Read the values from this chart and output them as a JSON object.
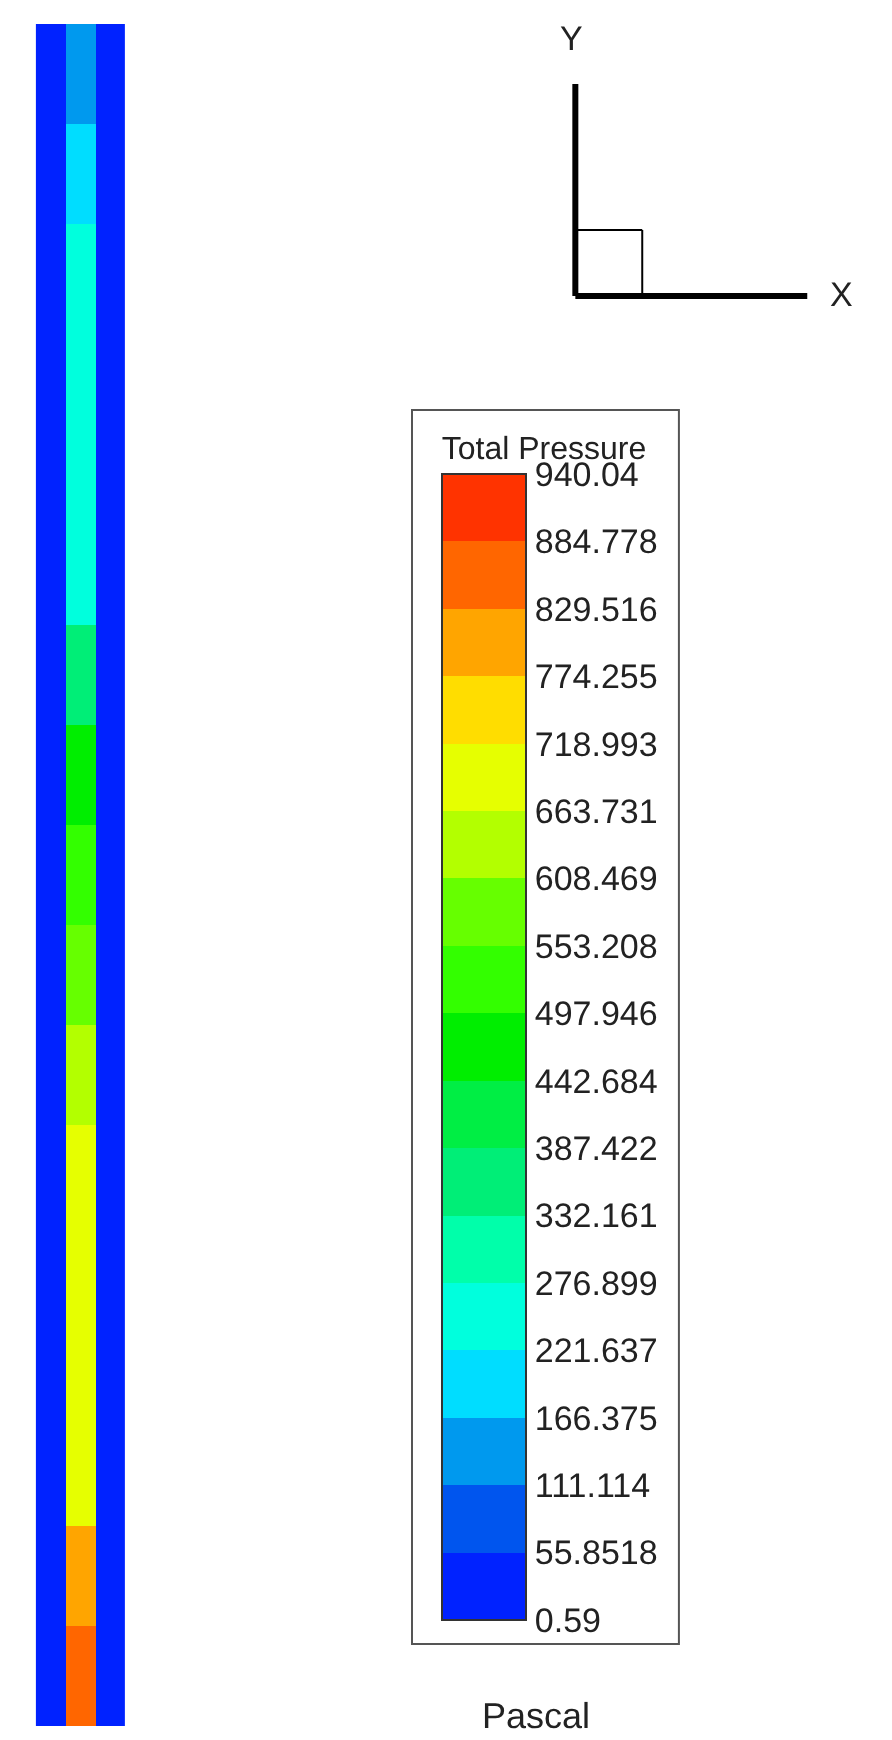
{
  "chart_data": {
    "type": "heatmap",
    "clabel": "Total Pressure",
    "annotations": [
      "Pascal",
      "Y",
      "X"
    ],
    "categories": [
      null,
      null,
      null
    ],
    "y_categories": [
      null,
      null,
      null,
      null,
      null,
      null,
      null,
      null,
      null,
      null,
      null,
      null,
      null,
      null,
      null,
      null,
      null
    ],
    "cells": [
      [
        28,
        140,
        28
      ],
      [
        28,
        190,
        28
      ],
      [
        28,
        250,
        28
      ],
      [
        28,
        250,
        28
      ],
      [
        28,
        250,
        28
      ],
      [
        28,
        250,
        28
      ],
      [
        28,
        360,
        28
      ],
      [
        28,
        470,
        28
      ],
      [
        28,
        520,
        28
      ],
      [
        28,
        580,
        28
      ],
      [
        28,
        640,
        28
      ],
      [
        28,
        690,
        28
      ],
      [
        28,
        690,
        28
      ],
      [
        28,
        690,
        28
      ],
      [
        28,
        690,
        28
      ],
      [
        28,
        800,
        28
      ],
      [
        28,
        850,
        28
      ]
    ],
    "clim": [
      0.59,
      940.04
    ],
    "cticks": [
      0.59,
      55.8518,
      111.114,
      166.375,
      221.637,
      276.899,
      332.161,
      387.422,
      442.684,
      497.946,
      553.208,
      608.469,
      663.731,
      718.993,
      774.255,
      829.516,
      884.778,
      940.04
    ],
    "colors": [
      "#0022ff",
      "#0055ee",
      "#0099ee",
      "#00ddff",
      "#00ffdd",
      "#00ffaa",
      "#00ee77",
      "#00ee44",
      "#00ee00",
      "#33ff00",
      "#66ff00",
      "#b3ff00",
      "#e6ff00",
      "#ffdd00",
      "#ffa500",
      "#ff6600",
      "#ff3300"
    ]
  }
}
